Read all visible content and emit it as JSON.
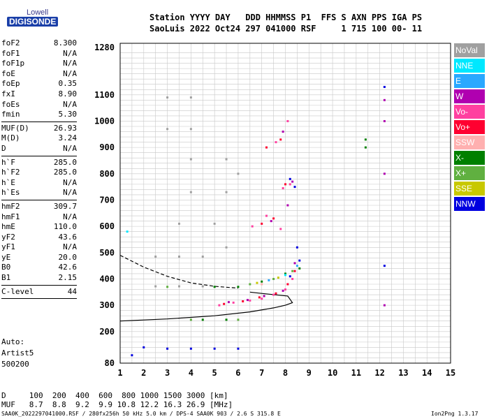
{
  "logo": {
    "top": "Lowell",
    "main": "DIGISONDE"
  },
  "header": {
    "line1": "Station YYYY DAY   DDD HHMMSS P1  FFS S AXN PPS IGA PS",
    "line2": "SaoLuis 2022 Oct24 297 041000 RSF     1 715 100 00- 11"
  },
  "params": [
    {
      "label": "foF2",
      "value": "8.300"
    },
    {
      "label": "foF1",
      "value": "N/A"
    },
    {
      "label": "foF1p",
      "value": "N/A"
    },
    {
      "label": "foE",
      "value": "N/A"
    },
    {
      "label": "foEp",
      "value": "0.35"
    },
    {
      "label": "fxI",
      "value": "8.90"
    },
    {
      "label": "foEs",
      "value": "N/A"
    },
    {
      "label": "fmin",
      "value": "5.30"
    },
    {
      "sep": true
    },
    {
      "label": "MUF(D)",
      "value": "26.93"
    },
    {
      "label": "M(D)",
      "value": "3.24"
    },
    {
      "label": "D",
      "value": "N/A"
    },
    {
      "sep": true
    },
    {
      "label": "h`F",
      "value": "285.0"
    },
    {
      "label": "h`F2",
      "value": "285.0"
    },
    {
      "label": "h`E",
      "value": "N/A"
    },
    {
      "label": "h`Es",
      "value": "N/A"
    },
    {
      "sep": true
    },
    {
      "label": "hmF2",
      "value": "309.7"
    },
    {
      "label": "hmF1",
      "value": "N/A"
    },
    {
      "label": "hmE",
      "value": "110.0"
    },
    {
      "label": "yF2",
      "value": "43.6"
    },
    {
      "label": "yF1",
      "value": "N/A"
    },
    {
      "label": "yE",
      "value": "20.0"
    },
    {
      "label": "B0",
      "value": "42.6"
    },
    {
      "label": "B1",
      "value": "2.15"
    },
    {
      "sep": true
    },
    {
      "label": "C-level",
      "value": "44"
    },
    {
      "sep": true
    }
  ],
  "auto": {
    "line1": "Auto:",
    "line2": "Artist5",
    "line3": "500200"
  },
  "legend": [
    {
      "label": "NoVal",
      "color": "#a0a0a0"
    },
    {
      "label": "NNE",
      "color": "#00e8ff"
    },
    {
      "label": "E",
      "color": "#2aa8ff"
    },
    {
      "label": "W",
      "color": "#b000b0"
    },
    {
      "label": "Vo-",
      "color": "#ff40a0"
    },
    {
      "label": "Vo+",
      "color": "#ff0030"
    },
    {
      "label": "SSW",
      "color": "#ffb0b0"
    },
    {
      "label": "X-",
      "color": "#008000"
    },
    {
      "label": "X+",
      "color": "#60b040"
    },
    {
      "label": "SSE",
      "color": "#c8c800"
    },
    {
      "label": "NNW",
      "color": "#0000e0"
    }
  ],
  "dtable": {
    "row1": "D     100  200  400  600  800 1000 1500 3000 [km]",
    "row2": "MUF   8.7  8.8  9.2  9.9 10.8 12.2 16.3 26.9 [MHz]"
  },
  "footer": {
    "left": "SAA0K_2022297041000.RSF / 280fx256h 50 kHz 5.0 km / DPS-4 SAA0K 903 / 2.6 S 315.8 E",
    "right": "Ion2Png 1.3.17"
  },
  "chart_data": {
    "type": "scatter",
    "xlim": [
      1,
      15
    ],
    "ylim": [
      80,
      1280
    ],
    "x_ticks": [
      1,
      2,
      3,
      4,
      5,
      6,
      7,
      8,
      9,
      10,
      11,
      12,
      13,
      14,
      15
    ],
    "y_ticks": [
      80,
      200,
      300,
      400,
      500,
      600,
      700,
      800,
      900,
      1000,
      1100,
      1280
    ],
    "grid": true,
    "series": [
      {
        "name": "Vo-",
        "color": "#ff40a0",
        "points": [
          [
            5.2,
            300
          ],
          [
            5.8,
            310
          ],
          [
            6.5,
            318
          ],
          [
            7.0,
            325
          ],
          [
            7.5,
            340
          ],
          [
            8.0,
            360
          ],
          [
            8.3,
            400
          ],
          [
            7.8,
            590
          ],
          [
            7.2,
            640
          ],
          [
            6.6,
            600
          ],
          [
            7.9,
            745
          ],
          [
            8.2,
            760
          ],
          [
            7.6,
            920
          ],
          [
            8.1,
            1000
          ]
        ]
      },
      {
        "name": "Vo+",
        "color": "#ff0030",
        "points": [
          [
            5.4,
            305
          ],
          [
            6.2,
            315
          ],
          [
            6.9,
            330
          ],
          [
            7.6,
            345
          ],
          [
            8.1,
            380
          ],
          [
            8.4,
            430
          ],
          [
            7.0,
            610
          ],
          [
            7.5,
            630
          ],
          [
            8.0,
            760
          ],
          [
            7.2,
            900
          ],
          [
            7.8,
            930
          ]
        ]
      },
      {
        "name": "W",
        "color": "#b000b0",
        "points": [
          [
            5.6,
            312
          ],
          [
            6.4,
            320
          ],
          [
            7.1,
            335
          ],
          [
            7.9,
            355
          ],
          [
            8.4,
            460
          ],
          [
            7.4,
            620
          ],
          [
            8.1,
            680
          ],
          [
            8.3,
            770
          ],
          [
            7.9,
            960
          ],
          [
            12.2,
            800
          ],
          [
            12.2,
            1000
          ],
          [
            12.2,
            1080
          ],
          [
            12.2,
            300
          ]
        ]
      },
      {
        "name": "NNW",
        "color": "#0000e0",
        "points": [
          [
            8.2,
            410
          ],
          [
            8.6,
            470
          ],
          [
            8.5,
            520
          ],
          [
            8.4,
            750
          ],
          [
            8.2,
            780
          ],
          [
            2.0,
            140
          ],
          [
            3.0,
            135
          ],
          [
            4.0,
            135
          ],
          [
            5.0,
            135
          ],
          [
            6.0,
            135
          ],
          [
            1.5,
            110
          ],
          [
            12.2,
            1130
          ],
          [
            12.2,
            450
          ]
        ]
      },
      {
        "name": "X-",
        "color": "#008000",
        "points": [
          [
            6.0,
            370
          ],
          [
            7.0,
            390
          ],
          [
            8.0,
            420
          ],
          [
            8.6,
            440
          ],
          [
            4.5,
            245
          ],
          [
            5.5,
            245
          ],
          [
            5.0,
            370
          ],
          [
            11.4,
            930
          ],
          [
            11.4,
            900
          ]
        ]
      },
      {
        "name": "X+",
        "color": "#60b040",
        "points": [
          [
            6.5,
            380
          ],
          [
            7.5,
            400
          ],
          [
            8.3,
            430
          ],
          [
            4.0,
            245
          ],
          [
            6.0,
            245
          ],
          [
            3.0,
            370
          ]
        ]
      },
      {
        "name": "SSE",
        "color": "#c8c800",
        "points": [
          [
            6.8,
            385
          ],
          [
            7.7,
            405
          ]
        ]
      },
      {
        "name": "NNE",
        "color": "#00e8ff",
        "points": [
          [
            8.0,
            415
          ],
          [
            1.3,
            580
          ]
        ]
      },
      {
        "name": "E",
        "color": "#2aa8ff",
        "points": [
          [
            7.3,
            395
          ],
          [
            8.5,
            450
          ]
        ]
      },
      {
        "name": "SSW",
        "color": "#ffb0b0",
        "points": [
          [
            7.0,
            380
          ]
        ]
      },
      {
        "name": "NoVal",
        "color": "#a0a0a0",
        "points": [
          [
            2.5,
            485
          ],
          [
            3.5,
            485
          ],
          [
            4.5,
            485
          ],
          [
            2.5,
            372
          ],
          [
            3.5,
            372
          ],
          [
            4.5,
            372
          ],
          [
            3.0,
            1090
          ],
          [
            4.0,
            1090
          ],
          [
            3.0,
            970
          ],
          [
            4.0,
            970
          ],
          [
            4.0,
            855
          ],
          [
            5.5,
            855
          ],
          [
            4.0,
            730
          ],
          [
            5.5,
            730
          ],
          [
            3.5,
            610
          ],
          [
            5.0,
            610
          ],
          [
            6.0,
            800
          ],
          [
            5.5,
            520
          ]
        ]
      }
    ],
    "curves": [
      {
        "name": "profile",
        "style": "solid",
        "points": [
          [
            1.0,
            240
          ],
          [
            3.0,
            248
          ],
          [
            5.0,
            260
          ],
          [
            6.5,
            275
          ],
          [
            7.5,
            290
          ],
          [
            8.0,
            300
          ],
          [
            8.3,
            310
          ],
          [
            8.1,
            335
          ],
          [
            7.0,
            345
          ],
          [
            6.5,
            350
          ]
        ]
      },
      {
        "name": "virtual",
        "style": "dashed",
        "points": [
          [
            1.0,
            490
          ],
          [
            2.0,
            445
          ],
          [
            3.0,
            410
          ],
          [
            4.0,
            385
          ],
          [
            5.0,
            372
          ],
          [
            6.0,
            365
          ]
        ]
      }
    ]
  }
}
